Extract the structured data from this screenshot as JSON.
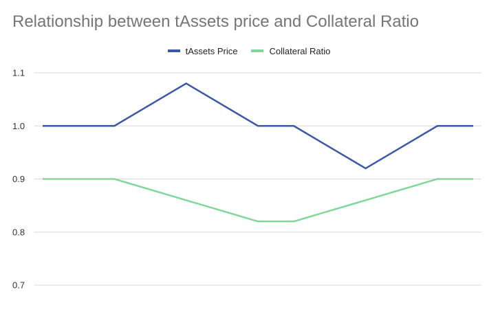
{
  "chart_data": {
    "type": "line",
    "title": "Relationship between tAssets price and Collateral Ratio",
    "xlabel": "",
    "ylabel": "",
    "ylim": [
      0.7,
      1.1
    ],
    "yticks": [
      "1.1",
      "1.0",
      "0.9",
      "0.8",
      "0.7"
    ],
    "grid": true,
    "legend": "top-center",
    "x": [
      0,
      1,
      2,
      3,
      4,
      5,
      6,
      7,
      8,
      9,
      10,
      11,
      12
    ],
    "series": [
      {
        "name": "tAssets Price",
        "color": "#3a57a8",
        "values": [
          1.0,
          1.0,
          1.0,
          1.04,
          1.08,
          1.04,
          1.0,
          1.0,
          0.96,
          0.92,
          0.96,
          1.0,
          1.0
        ]
      },
      {
        "name": "Collateral Ratio",
        "color": "#7fd89a",
        "values": [
          0.9,
          0.9,
          0.9,
          0.88,
          0.86,
          0.84,
          0.82,
          0.82,
          0.84,
          0.86,
          0.88,
          0.9,
          0.9
        ]
      }
    ],
    "grid_color": "#d9d9d9"
  }
}
